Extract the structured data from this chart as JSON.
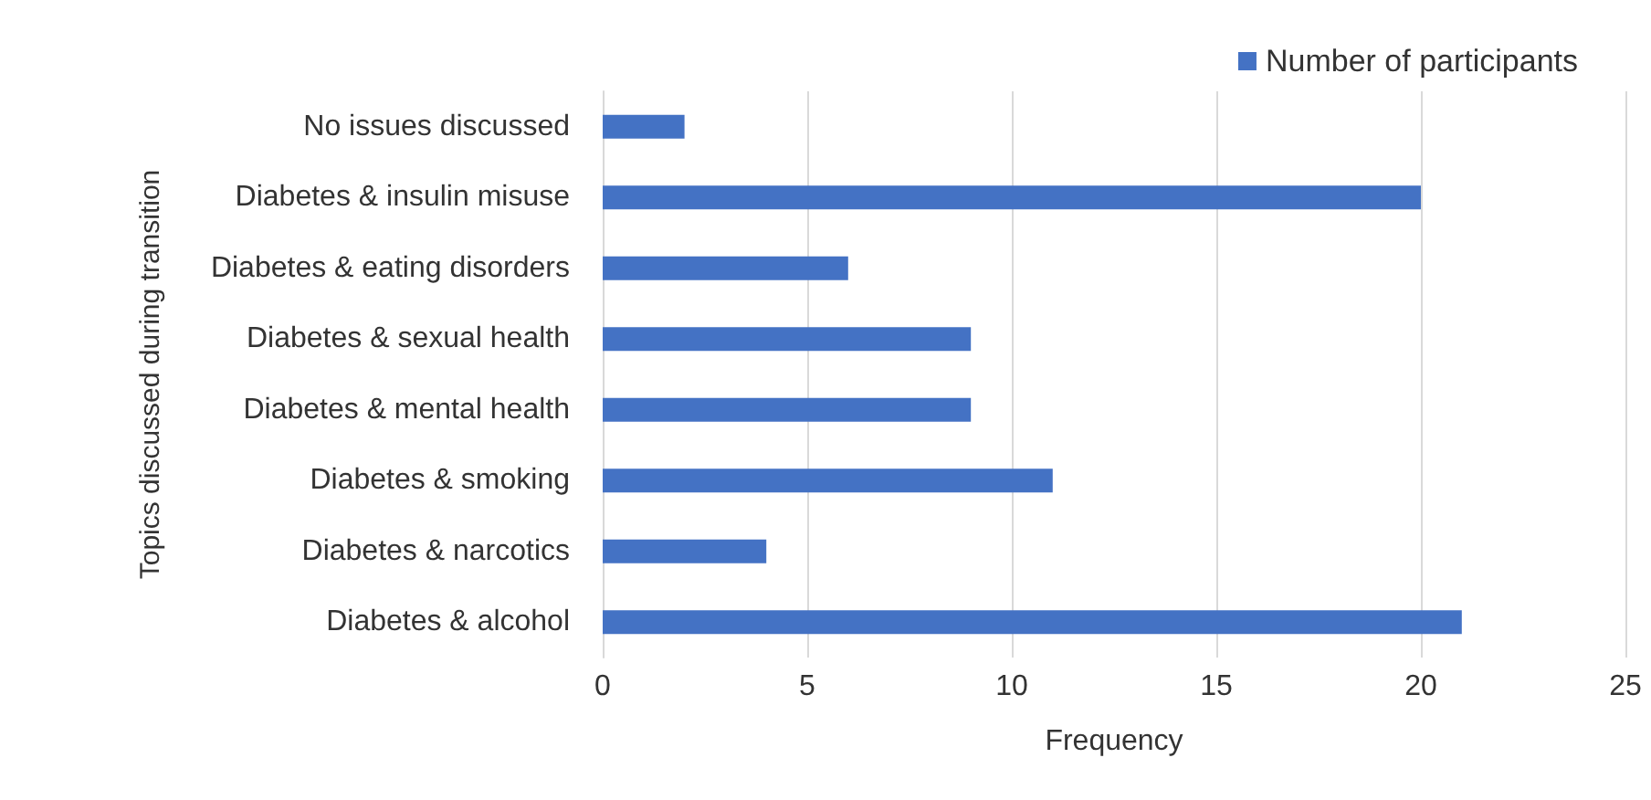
{
  "chart_data": {
    "type": "bar",
    "orientation": "horizontal",
    "categories": [
      "No issues discussed",
      "Diabetes & insulin misuse",
      "Diabetes & eating disorders",
      "Diabetes & sexual health",
      "Diabetes & mental health",
      "Diabetes & smoking",
      "Diabetes & narcotics",
      "Diabetes & alcohol"
    ],
    "series": [
      {
        "name": "Number of participants",
        "color": "#4472c4",
        "values": [
          2,
          20,
          6,
          9,
          9,
          11,
          4,
          21
        ]
      }
    ],
    "xlabel": "Frequency",
    "ylabel": "Topics discussed during transition",
    "xlim": [
      0,
      25
    ],
    "xticks": [
      0,
      5,
      10,
      15,
      20,
      25
    ],
    "grid": "x",
    "legend": "top right"
  }
}
